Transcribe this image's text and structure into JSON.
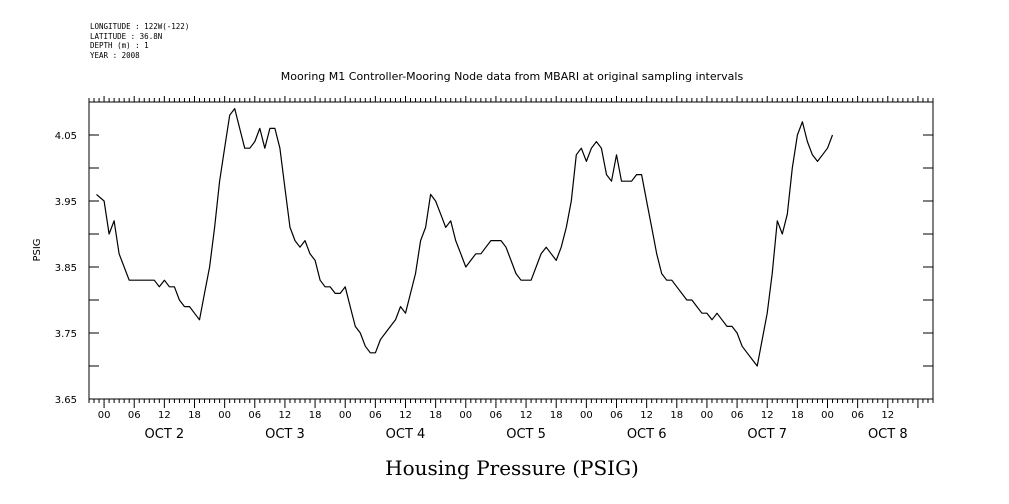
{
  "meta": {
    "longitude": "LONGITUDE : 122W(-122)",
    "latitude": "LATITUDE : 36.8N",
    "depth": "DEPTH (m) : 1",
    "year": "YEAR : 2008"
  },
  "chart_data": {
    "type": "line",
    "title": "Mooring M1 Controller-Mooring Node data from MBARI at original sampling intervals",
    "xlabel": "Housing Pressure (PSIG)",
    "ylabel": "PSIG",
    "ylim": [
      3.65,
      4.1
    ],
    "xlim": [
      -3,
      165
    ],
    "yticks": [
      "3.65",
      "3.75",
      "3.85",
      "3.95",
      "4.05"
    ],
    "hour_labels": [
      "00",
      "06",
      "12",
      "18",
      "00",
      "06",
      "12",
      "18",
      "00",
      "06",
      "12",
      "18",
      "00",
      "06",
      "12",
      "18",
      "00",
      "06",
      "12",
      "18",
      "00",
      "06",
      "12",
      "18",
      "00",
      "06",
      "12"
    ],
    "day_labels": [
      "OCT  2",
      "OCT  3",
      "OCT  4",
      "OCT  5",
      "OCT  6",
      "OCT  7",
      "OCT  8"
    ],
    "grid": false,
    "series": [
      {
        "values": [
          [
            -1.5,
            3.96
          ],
          [
            0,
            3.95
          ],
          [
            1,
            3.9
          ],
          [
            2,
            3.92
          ],
          [
            3,
            3.87
          ],
          [
            5,
            3.83
          ],
          [
            8,
            3.83
          ],
          [
            10,
            3.83
          ],
          [
            11,
            3.82
          ],
          [
            12,
            3.83
          ],
          [
            13,
            3.82
          ],
          [
            14,
            3.82
          ],
          [
            15,
            3.8
          ],
          [
            16,
            3.79
          ],
          [
            17,
            3.79
          ],
          [
            18,
            3.78
          ],
          [
            19,
            3.77
          ],
          [
            20,
            3.81
          ],
          [
            21,
            3.85
          ],
          [
            22,
            3.91
          ],
          [
            23,
            3.98
          ],
          [
            24,
            4.03
          ],
          [
            25,
            4.08
          ],
          [
            26,
            4.09
          ],
          [
            27,
            4.06
          ],
          [
            28,
            4.03
          ],
          [
            29,
            4.03
          ],
          [
            30,
            4.04
          ],
          [
            31,
            4.06
          ],
          [
            32,
            4.03
          ],
          [
            33,
            4.06
          ],
          [
            34,
            4.06
          ],
          [
            35,
            4.03
          ],
          [
            36,
            3.97
          ],
          [
            37,
            3.91
          ],
          [
            38,
            3.89
          ],
          [
            39,
            3.88
          ],
          [
            40,
            3.89
          ],
          [
            41,
            3.87
          ],
          [
            42,
            3.86
          ],
          [
            43,
            3.83
          ],
          [
            44,
            3.82
          ],
          [
            45,
            3.82
          ],
          [
            46,
            3.81
          ],
          [
            47,
            3.81
          ],
          [
            48,
            3.82
          ],
          [
            49,
            3.79
          ],
          [
            50,
            3.76
          ],
          [
            51,
            3.75
          ],
          [
            52,
            3.73
          ],
          [
            53,
            3.72
          ],
          [
            54,
            3.72
          ],
          [
            55,
            3.74
          ],
          [
            56,
            3.75
          ],
          [
            57,
            3.76
          ],
          [
            58,
            3.77
          ],
          [
            59,
            3.79
          ],
          [
            60,
            3.78
          ],
          [
            61,
            3.81
          ],
          [
            62,
            3.84
          ],
          [
            63,
            3.89
          ],
          [
            64,
            3.91
          ],
          [
            65,
            3.96
          ],
          [
            66,
            3.95
          ],
          [
            67,
            3.93
          ],
          [
            68,
            3.91
          ],
          [
            69,
            3.92
          ],
          [
            70,
            3.89
          ],
          [
            71,
            3.87
          ],
          [
            72,
            3.85
          ],
          [
            73,
            3.86
          ],
          [
            74,
            3.87
          ],
          [
            75,
            3.87
          ],
          [
            76,
            3.88
          ],
          [
            77,
            3.89
          ],
          [
            78,
            3.89
          ],
          [
            79,
            3.89
          ],
          [
            80,
            3.88
          ],
          [
            81,
            3.86
          ],
          [
            82,
            3.84
          ],
          [
            83,
            3.83
          ],
          [
            84,
            3.83
          ],
          [
            85,
            3.83
          ],
          [
            86,
            3.85
          ],
          [
            87,
            3.87
          ],
          [
            88,
            3.88
          ],
          [
            89,
            3.87
          ],
          [
            90,
            3.86
          ],
          [
            91,
            3.88
          ],
          [
            92,
            3.91
          ],
          [
            93,
            3.95
          ],
          [
            94,
            4.02
          ],
          [
            95,
            4.03
          ],
          [
            96,
            4.01
          ],
          [
            97,
            4.03
          ],
          [
            98,
            4.04
          ],
          [
            99,
            4.03
          ],
          [
            100,
            3.99
          ],
          [
            101,
            3.98
          ],
          [
            102,
            4.02
          ],
          [
            103,
            3.98
          ],
          [
            104,
            3.98
          ],
          [
            105,
            3.98
          ],
          [
            106,
            3.99
          ],
          [
            107,
            3.99
          ],
          [
            108,
            3.95
          ],
          [
            109,
            3.91
          ],
          [
            110,
            3.87
          ],
          [
            111,
            3.84
          ],
          [
            112,
            3.83
          ],
          [
            113,
            3.83
          ],
          [
            114,
            3.82
          ],
          [
            115,
            3.81
          ],
          [
            116,
            3.8
          ],
          [
            117,
            3.8
          ],
          [
            118,
            3.79
          ],
          [
            119,
            3.78
          ],
          [
            120,
            3.78
          ],
          [
            121,
            3.77
          ],
          [
            122,
            3.78
          ],
          [
            123,
            3.77
          ],
          [
            124,
            3.76
          ],
          [
            125,
            3.76
          ],
          [
            126,
            3.75
          ],
          [
            127,
            3.73
          ],
          [
            128,
            3.72
          ],
          [
            129,
            3.71
          ],
          [
            130,
            3.7
          ],
          [
            131,
            3.74
          ],
          [
            132,
            3.78
          ],
          [
            133,
            3.84
          ],
          [
            134,
            3.92
          ],
          [
            135,
            3.9
          ],
          [
            136,
            3.93
          ],
          [
            137,
            4.0
          ],
          [
            138,
            4.05
          ],
          [
            139,
            4.07
          ],
          [
            140,
            4.04
          ],
          [
            141,
            4.02
          ],
          [
            142,
            4.01
          ],
          [
            143,
            4.02
          ],
          [
            144,
            4.03
          ],
          [
            145,
            4.05
          ]
        ]
      }
    ]
  }
}
